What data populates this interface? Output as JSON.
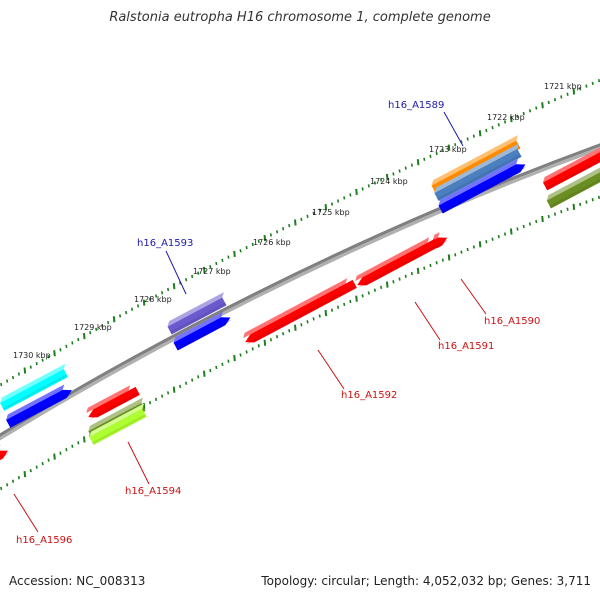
{
  "title": "Ralstonia eutropha H16 chromosome 1, complete genome",
  "footer": {
    "accession": "Accession: NC_008313",
    "summary": "Topology: circular; Length: 4,052,032 bp; Genes: 3,711"
  },
  "scale": {
    "tick_labels": [
      "1721 kbp",
      "1722 kbp",
      "1723 kbp",
      "1724 kbp",
      "1725 kbp",
      "1726 kbp",
      "1727 kbp",
      "1728 kbp",
      "1729 kbp",
      "1730 kbp"
    ]
  },
  "genes": {
    "top": [
      "h16_A1589",
      "h16_A1593"
    ],
    "bottom": [
      "h16_A1590",
      "h16_A1591",
      "h16_A1592",
      "h16_A1594",
      "h16_A1596"
    ]
  },
  "colors": {
    "backbone": "#808080",
    "ticks": "#1e7d1e",
    "top_label": "#1a1aaa",
    "bottom_label": "#cc1111",
    "red": "#ff0000",
    "blue": "#0000ff",
    "cyan": "#00ffff",
    "orange": "#ff8c00",
    "steelblue": "#4a7fc0",
    "slateblue": "#6a5acd",
    "olive": "#6b8e23",
    "greenyellow": "#adff2f"
  }
}
